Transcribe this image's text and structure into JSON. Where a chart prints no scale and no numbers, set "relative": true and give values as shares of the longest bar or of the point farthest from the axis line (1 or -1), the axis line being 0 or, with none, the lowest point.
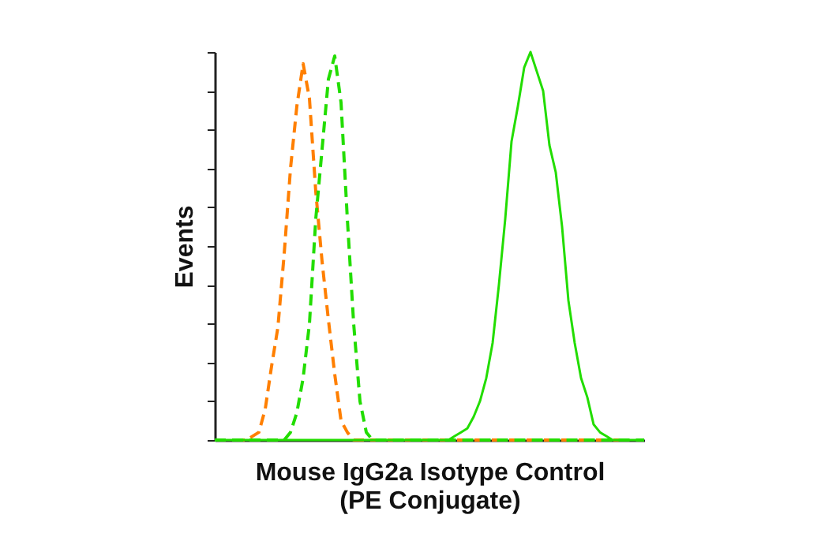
{
  "chart_data": {
    "type": "line",
    "relative": true,
    "xlabel": "Mouse IgG2a Isotype Control\n(PE Conjugate)",
    "ylabel": "Events",
    "grid": false,
    "marker": "none",
    "categories": [
      null,
      null,
      null,
      null,
      null,
      null,
      null,
      null,
      null,
      null,
      null,
      null,
      null,
      null,
      null,
      null,
      null,
      null,
      null,
      null,
      null,
      null,
      null,
      null,
      null,
      null,
      null,
      null,
      null,
      null,
      null,
      null,
      null,
      null,
      null,
      null,
      null,
      null,
      null,
      null,
      null,
      null,
      null,
      null,
      null,
      null,
      null,
      null,
      null,
      null,
      null,
      null,
      null,
      null,
      null,
      null,
      null,
      null,
      null,
      null,
      null,
      null,
      null,
      null,
      null,
      null,
      null,
      null,
      null
    ],
    "series": [
      {
        "color": "#ff7f00",
        "line_style": "dashed",
        "values": [
          null,
          null,
          null,
          0,
          0,
          0,
          0.01,
          0.02,
          0.08,
          0.19,
          0.29,
          0.48,
          0.7,
          0.86,
          0.97,
          0.88,
          0.64,
          0.46,
          0.31,
          0.17,
          0.05,
          0.02,
          0,
          0,
          0,
          0,
          0,
          0,
          0,
          0,
          0,
          0,
          0,
          0,
          0,
          0,
          0,
          0,
          0,
          0,
          0,
          0,
          0,
          0,
          0,
          0,
          0,
          0,
          0,
          0,
          0,
          0,
          0,
          0,
          0,
          0,
          0,
          0,
          0,
          0,
          0,
          0,
          0,
          0,
          0,
          null,
          null,
          null,
          null
        ]
      },
      {
        "color": "#22dd00",
        "line_style": "dashed",
        "values": [
          0,
          0,
          0,
          0,
          0,
          0,
          0,
          0,
          0,
          0,
          0,
          0,
          0.02,
          0.07,
          0.16,
          0.3,
          0.57,
          0.75,
          0.93,
          0.99,
          0.87,
          0.57,
          0.3,
          0.1,
          0.02,
          0,
          0,
          0,
          0,
          0,
          0,
          0,
          0,
          0,
          0,
          0,
          0,
          0,
          0,
          0,
          0,
          0,
          0,
          0,
          0,
          0,
          0,
          0,
          0,
          0,
          0,
          0,
          0,
          0,
          0,
          0,
          0,
          0,
          0,
          0,
          0,
          0,
          0,
          0,
          0,
          0,
          0,
          0,
          0
        ]
      },
      {
        "color": "#22dd00",
        "line_style": "solid",
        "values": [
          0,
          0,
          0,
          0,
          0,
          0,
          0,
          0,
          0,
          0,
          0,
          0,
          0,
          0,
          0,
          0,
          0,
          0,
          0,
          0,
          0,
          0,
          0,
          0,
          0,
          0,
          0,
          0,
          0,
          0,
          0,
          0,
          0,
          0,
          0,
          0,
          0,
          0,
          0.01,
          0.02,
          0.03,
          0.06,
          0.1,
          0.16,
          0.25,
          0.4,
          0.57,
          0.77,
          0.86,
          0.96,
          1,
          0.95,
          0.9,
          0.76,
          0.69,
          0.55,
          0.36,
          0.25,
          0.16,
          0.11,
          0.04,
          0.02,
          0.01,
          0,
          0,
          0,
          0,
          0,
          0
        ]
      }
    ]
  }
}
